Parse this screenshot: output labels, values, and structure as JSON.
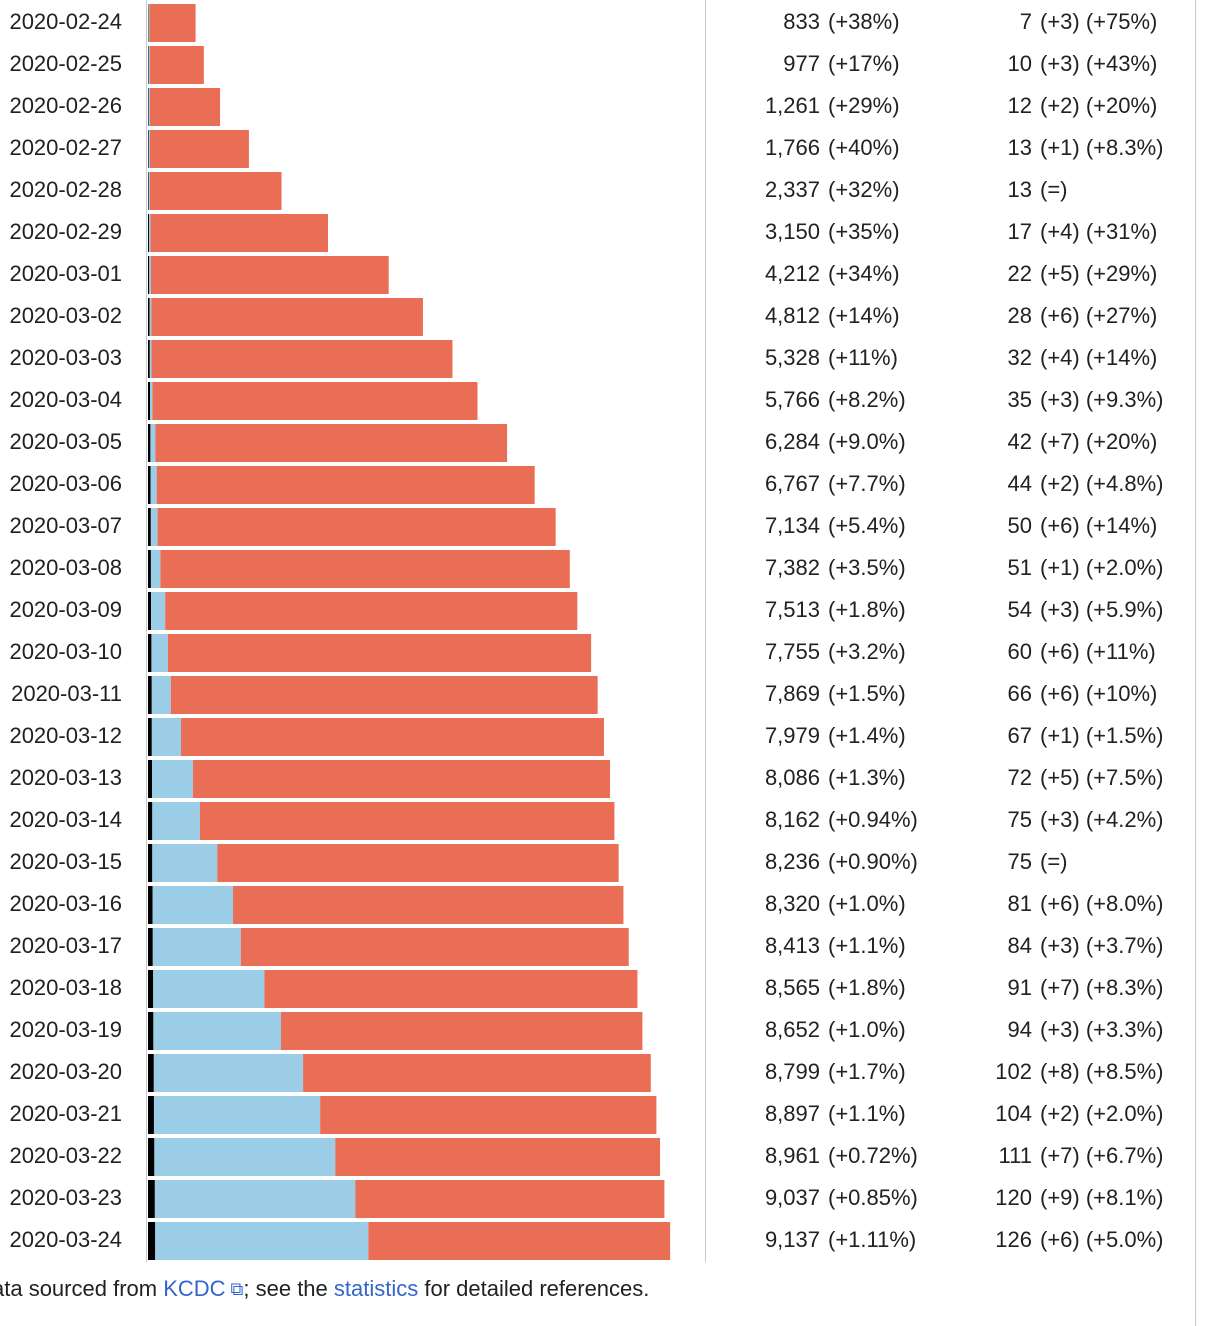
{
  "chart_data": {
    "type": "bar",
    "orientation": "horizontal",
    "stacked": true,
    "categories": [
      "2020-02-24",
      "2020-02-25",
      "2020-02-26",
      "2020-02-27",
      "2020-02-28",
      "2020-02-29",
      "2020-03-01",
      "2020-03-02",
      "2020-03-03",
      "2020-03-04",
      "2020-03-05",
      "2020-03-06",
      "2020-03-07",
      "2020-03-08",
      "2020-03-09",
      "2020-03-10",
      "2020-03-11",
      "2020-03-12",
      "2020-03-13",
      "2020-03-14",
      "2020-03-15",
      "2020-03-16",
      "2020-03-17",
      "2020-03-18",
      "2020-03-19",
      "2020-03-20",
      "2020-03-21",
      "2020-03-22",
      "2020-03-23",
      "2020-03-24"
    ],
    "series": [
      {
        "color": "#000000",
        "values": [
          7,
          10,
          12,
          13,
          13,
          17,
          22,
          28,
          32,
          35,
          42,
          44,
          50,
          51,
          54,
          60,
          66,
          67,
          72,
          75,
          75,
          81,
          84,
          91,
          94,
          102,
          104,
          111,
          120,
          126
        ]
      },
      {
        "color": "#9ccde7",
        "values": [
          18,
          22,
          22,
          22,
          22,
          27,
          30,
          30,
          30,
          41,
          88,
          108,
          118,
          166,
          247,
          288,
          333,
          510,
          714,
          834,
          1137,
          1407,
          1540,
          1947,
          2233,
          2612,
          2909,
          3166,
          3507,
          3730
        ]
      },
      {
        "color": "#ea6e55",
        "values": [
          808,
          945,
          1227,
          1731,
          2302,
          3106,
          4160,
          4754,
          5266,
          5690,
          6154,
          6615,
          6966,
          7165,
          7212,
          7407,
          7470,
          7402,
          7300,
          7253,
          7024,
          6832,
          6789,
          6527,
          6325,
          6085,
          5884,
          5684,
          5410,
          5281
        ]
      }
    ],
    "xlim": [
      0,
      9800
    ],
    "case_labels": [
      "833",
      "977",
      "1,261",
      "1,766",
      "2,337",
      "3,150",
      "4,212",
      "4,812",
      "5,328",
      "5,766",
      "6,284",
      "6,767",
      "7,134",
      "7,382",
      "7,513",
      "7,755",
      "7,869",
      "7,979",
      "8,086",
      "8,162",
      "8,236",
      "8,320",
      "8,413",
      "8,565",
      "8,652",
      "8,799",
      "8,897",
      "8,961",
      "9,037",
      "9,137"
    ],
    "case_changes": [
      "(+38%)",
      "(+17%)",
      "(+29%)",
      "(+40%)",
      "(+32%)",
      "(+35%)",
      "(+34%)",
      "(+14%)",
      "(+11%)",
      "(+8.2%)",
      "(+9.0%)",
      "(+7.7%)",
      "(+5.4%)",
      "(+3.5%)",
      "(+1.8%)",
      "(+3.2%)",
      "(+1.5%)",
      "(+1.4%)",
      "(+1.3%)",
      "(+0.94%)",
      "(+0.90%)",
      "(+1.0%)",
      "(+1.1%)",
      "(+1.8%)",
      "(+1.0%)",
      "(+1.7%)",
      "(+1.1%)",
      "(+0.72%)",
      "(+0.85%)",
      "(+1.11%)"
    ],
    "death_changes": [
      "(+3) (+75%)",
      "(+3) (+43%)",
      "(+2) (+20%)",
      "(+1) (+8.3%)",
      "(=)",
      "(+4) (+31%)",
      "(+5) (+29%)",
      "(+6) (+27%)",
      "(+4) (+14%)",
      "(+3) (+9.3%)",
      "(+7) (+20%)",
      "(+2) (+4.8%)",
      "(+6) (+14%)",
      "(+1) (+2.0%)",
      "(+3) (+5.9%)",
      "(+6) (+11%)",
      "(+6) (+10%)",
      "(+1) (+1.5%)",
      "(+5) (+7.5%)",
      "(+3) (+4.2%)",
      "(=)",
      "(+6) (+8.0%)",
      "(+3) (+3.7%)",
      "(+7) (+8.3%)",
      "(+3) (+3.3%)",
      "(+8) (+8.5%)",
      "(+2) (+2.0%)",
      "(+7) (+6.7%)",
      "(+9) (+8.1%)",
      "(+6) (+5.0%)"
    ],
    "footer": {
      "before": "ata sourced from ",
      "link1": "KCDC",
      "middle": "; see the ",
      "link2": "statistics",
      "after": " for detailed references."
    }
  }
}
